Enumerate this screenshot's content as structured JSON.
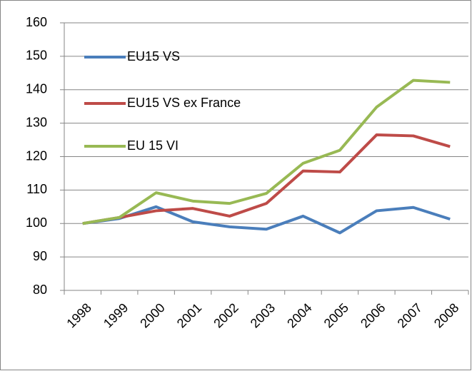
{
  "chart_data": {
    "type": "line",
    "categories": [
      "1998",
      "1999",
      "2000",
      "2001",
      "2002",
      "2003",
      "2004",
      "2005",
      "2006",
      "2007",
      "2008"
    ],
    "series": [
      {
        "name": "EU15 VS",
        "color": "#4a7ebb",
        "values": [
          100,
          101.5,
          105,
          100.5,
          99,
          98.3,
          102.2,
          97.2,
          103.8,
          104.8,
          101.3
        ]
      },
      {
        "name": "EU15 VS ex France",
        "color": "#be4b48",
        "values": [
          100,
          101.8,
          103.8,
          104.5,
          102.2,
          106,
          115.7,
          115.4,
          126.5,
          126.2,
          123
        ]
      },
      {
        "name": "EU 15 VI",
        "color": "#98b954",
        "values": [
          100,
          101.8,
          109.2,
          106.7,
          106,
          109,
          118,
          121.9,
          134.8,
          142.8,
          142.2
        ]
      }
    ],
    "ylim": [
      80,
      160
    ],
    "yticks": [
      80,
      90,
      100,
      110,
      120,
      130,
      140,
      150,
      160
    ],
    "grid": true,
    "legend": "upper left"
  }
}
